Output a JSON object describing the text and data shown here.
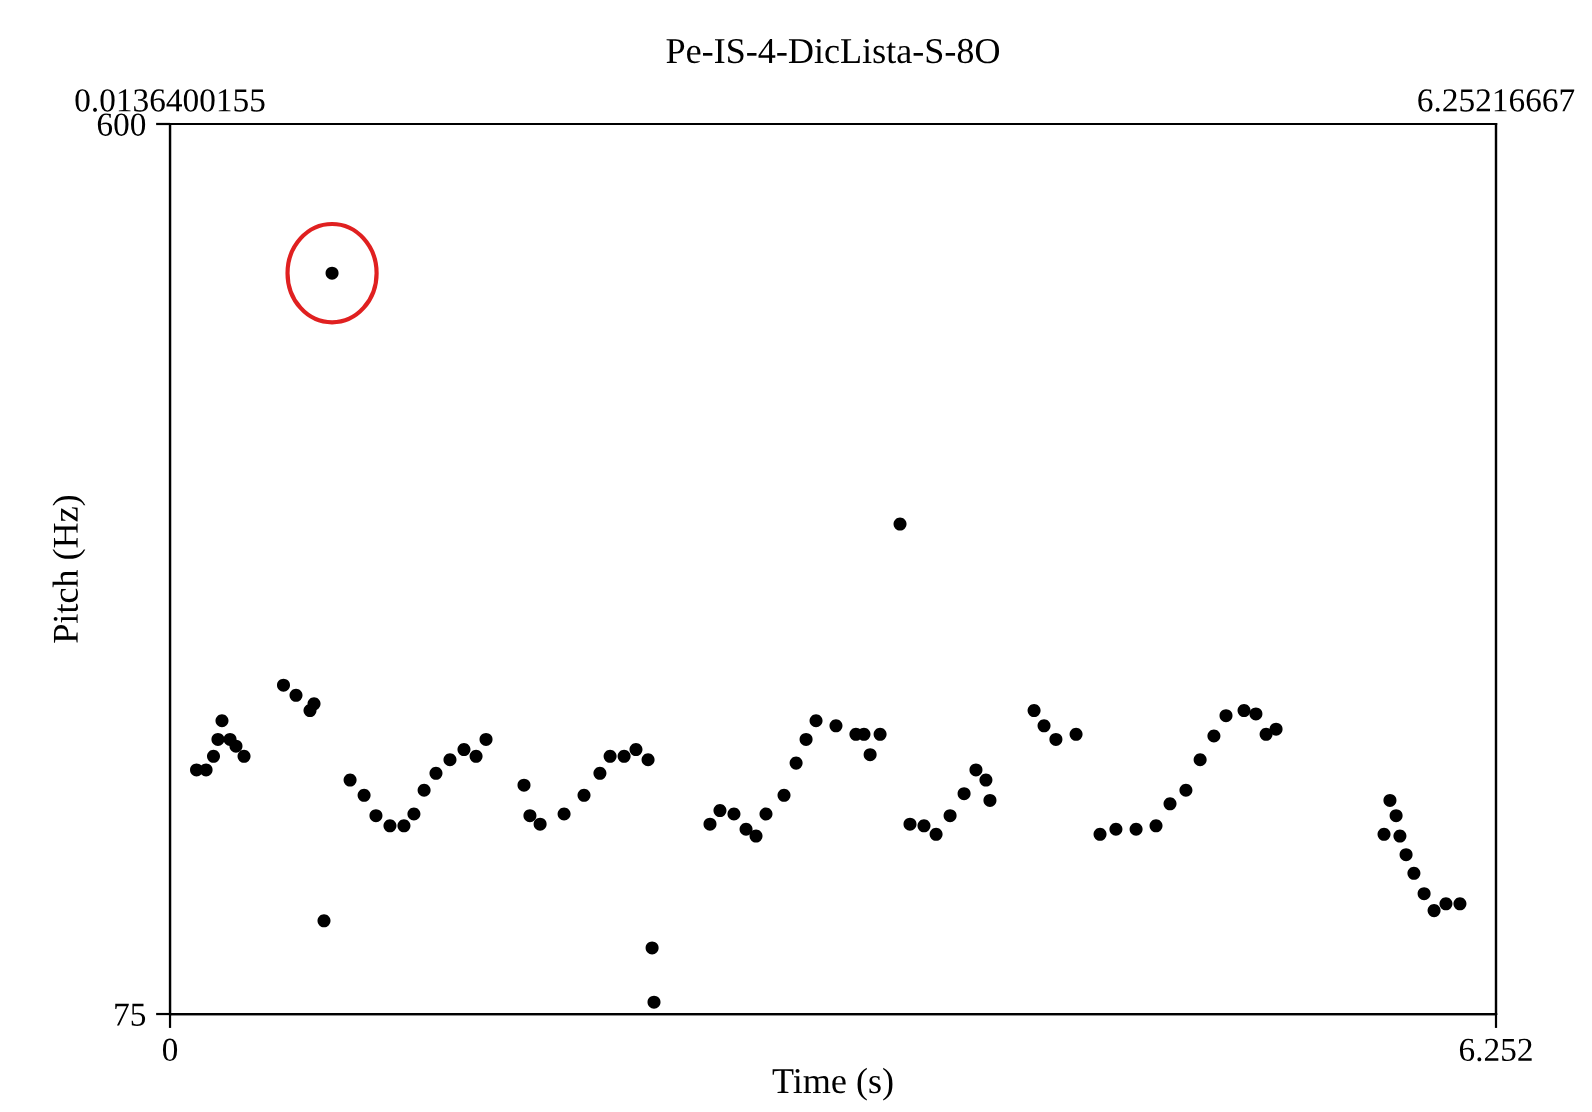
{
  "chart_data": {
    "type": "scatter",
    "title": "Pe-IS-4-DicLista-S-8O",
    "xlabel": "Time (s)",
    "ylabel": "Pitch (Hz)",
    "xlim": [
      0,
      6.252
    ],
    "xticks": [
      0,
      6.252
    ],
    "x2lim": [
      0.0136400155,
      6.25216667
    ],
    "x2ticks": [
      0.0136400155,
      6.25216667
    ],
    "ylim": [
      75,
      600
    ],
    "yticks": [
      75,
      600
    ],
    "grid": false,
    "marker": "circle",
    "series": [
      {
        "color": "#000000",
        "x": [
          0.125,
          0.17,
          0.205,
          0.226,
          0.245,
          0.283,
          0.311,
          0.349,
          0.535,
          0.594,
          0.66,
          0.679,
          0.726,
          0.764,
          0.849,
          0.915,
          0.971,
          1.037,
          1.103,
          1.15,
          1.198,
          1.254,
          1.32,
          1.386,
          1.443,
          1.49,
          1.669,
          1.697,
          1.745,
          1.858,
          1.952,
          2.027,
          2.075,
          2.141,
          2.197,
          2.254,
          2.273,
          2.282,
          2.546,
          2.593,
          2.659,
          2.716,
          2.763,
          2.81,
          2.895,
          2.952,
          2.999,
          3.046,
          3.14,
          3.234,
          3.272,
          3.301,
          3.348,
          3.442,
          3.489,
          3.555,
          3.612,
          3.678,
          3.744,
          3.8,
          3.847,
          3.866,
          4.074,
          4.121,
          4.177,
          4.272,
          4.385,
          4.46,
          4.555,
          4.649,
          4.715,
          4.79,
          4.857,
          4.922,
          4.979,
          5.064,
          5.12,
          5.168,
          5.215,
          5.724,
          5.752,
          5.781,
          5.799,
          5.828,
          5.865,
          5.913,
          5.96,
          6.016,
          6.082
        ],
        "values": [
          219,
          219,
          227,
          237,
          248,
          237,
          233,
          227,
          269,
          263,
          254,
          258,
          130,
          512,
          213,
          204,
          192,
          186,
          186,
          193,
          207,
          217,
          225,
          231,
          227,
          237,
          210,
          192,
          187,
          193,
          204,
          217,
          227,
          227,
          231,
          225,
          114,
          82,
          187,
          195,
          193,
          184,
          180,
          193,
          204,
          223,
          237,
          248,
          245,
          240,
          240,
          228,
          240,
          364,
          187,
          186,
          181,
          192,
          205,
          219,
          213,
          201,
          254,
          245,
          237,
          240,
          181,
          184,
          184,
          186,
          199,
          207,
          225,
          239,
          251,
          254,
          252,
          240,
          243,
          181,
          201,
          192,
          180,
          169,
          158,
          146,
          136,
          140,
          140
        ]
      }
    ]
  }
}
